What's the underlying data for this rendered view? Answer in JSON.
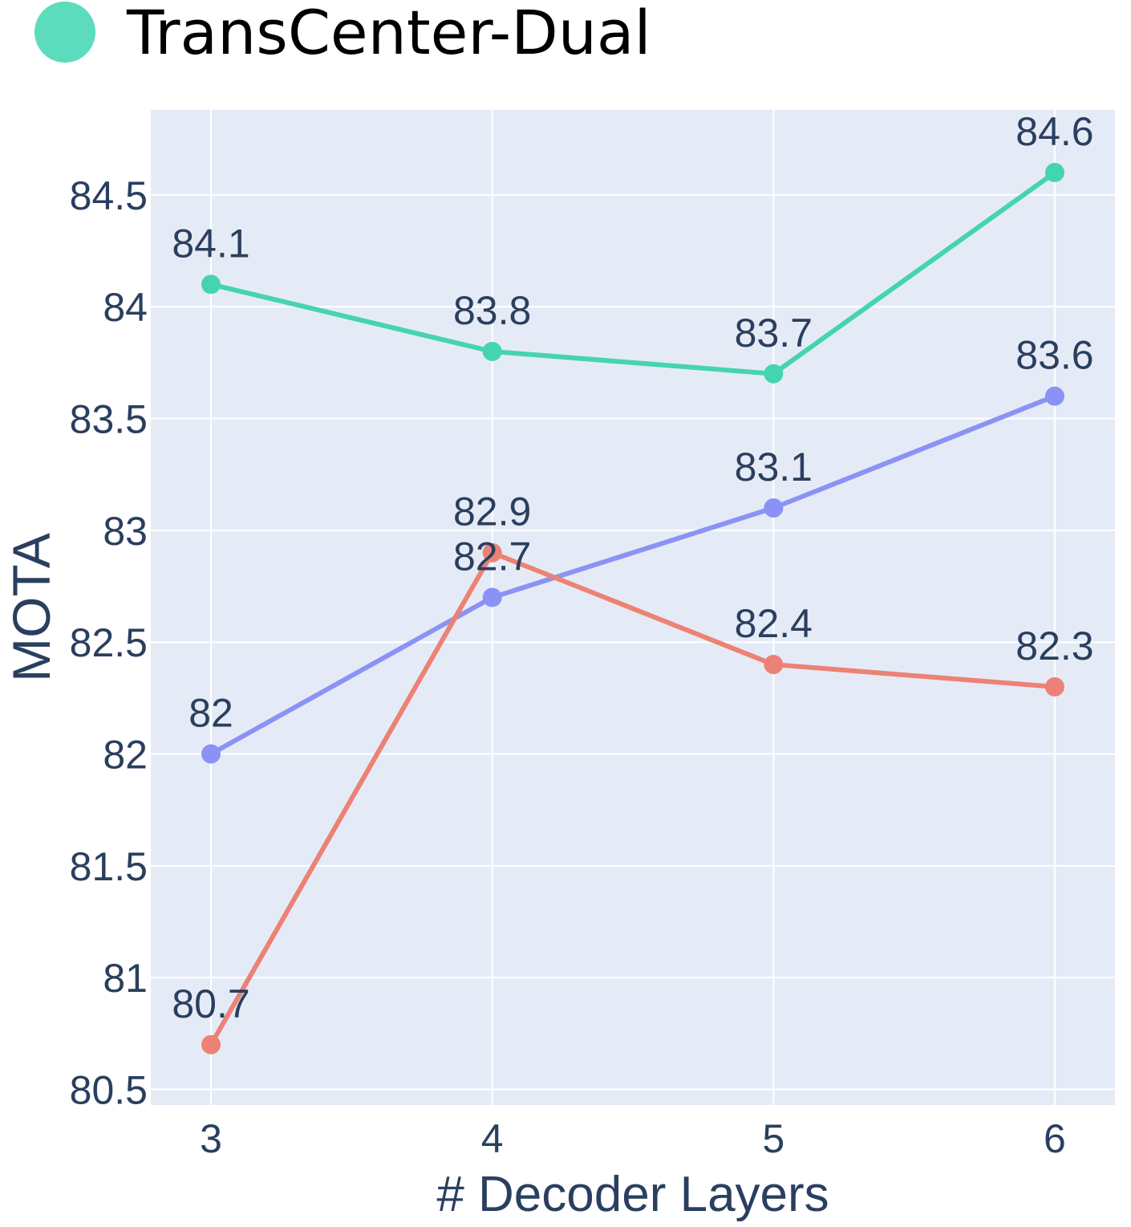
{
  "chart_data": {
    "type": "line",
    "title": "",
    "xlabel": "# Decoder Layers",
    "ylabel": "MOTA",
    "x": [
      3,
      4,
      5,
      6
    ],
    "x_ticks": [
      "3",
      "4",
      "5",
      "6"
    ],
    "y_ticks": [
      "80.5",
      "81",
      "81.5",
      "82",
      "82.5",
      "83",
      "83.5",
      "84",
      "84.5"
    ],
    "y_tick_values": [
      80.5,
      81,
      81.5,
      82,
      82.5,
      83,
      83.5,
      84,
      84.5
    ],
    "xlim": [
      2.786,
      6.214
    ],
    "ylim": [
      80.43,
      84.88
    ],
    "grid": true,
    "legend_position": "top-left",
    "legend": [
      {
        "series_index": 0,
        "label": "TransCenter-Dual"
      }
    ],
    "series": [
      {
        "name": "TransCenter-Dual",
        "color": "#45d4b0",
        "values": [
          84.1,
          83.8,
          83.7,
          84.6
        ],
        "labels": [
          "84.1",
          "83.8",
          "83.7",
          "84.6"
        ]
      },
      {
        "color": "#8a93f5",
        "values": [
          82,
          82.7,
          83.1,
          83.6
        ],
        "labels": [
          "82",
          "82.7",
          "83.1",
          "83.6"
        ]
      },
      {
        "color": "#ec8275",
        "values": [
          80.7,
          82.9,
          82.4,
          82.3
        ],
        "labels": [
          "80.7",
          "82.9",
          "82.4",
          "82.3"
        ]
      }
    ]
  },
  "colors": {
    "plot_background": "#e5ebf6",
    "grid": "#ffffff",
    "text": "#2a3f5f",
    "legend_text": "#000000",
    "legend_marker": "#5cdcbc"
  }
}
